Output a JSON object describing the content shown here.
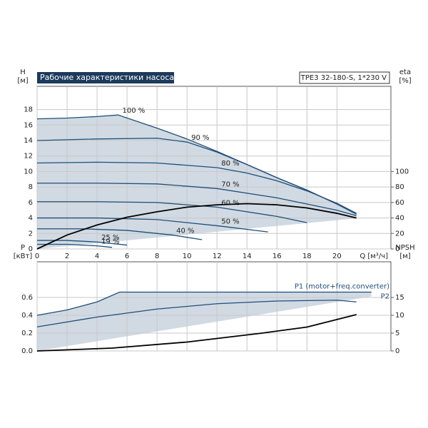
{
  "chart_data": [
    {
      "type": "line",
      "title": "Рабочие характеристики насоса",
      "subtitle": "TPE3 32-180-S, 1*230 V",
      "y_label": "H",
      "y_unit": "[м]",
      "y2_label": "eta",
      "y2_unit": "[%]",
      "x_label": "Q [м³/ч]",
      "xlim": [
        0,
        23.6
      ],
      "xticks": [
        0,
        2,
        4,
        6,
        8,
        10,
        12,
        14,
        16,
        18,
        20
      ],
      "ylim": [
        0,
        21
      ],
      "yticks": [
        0,
        2,
        4,
        6,
        8,
        10,
        12,
        14,
        16,
        18
      ],
      "y2lim": [
        0,
        210
      ],
      "y2ticks": [
        0,
        20,
        40,
        60,
        80,
        100
      ],
      "grid": true,
      "series": [
        {
          "name": "100 %",
          "color": "#1f4e79",
          "x": [
            0,
            2,
            4,
            5.4,
            8,
            10,
            12,
            14,
            16,
            18,
            20,
            21.3
          ],
          "values": [
            16.8,
            16.9,
            17.1,
            17.3,
            15.6,
            14.2,
            12.6,
            10.9,
            9.2,
            7.6,
            5.8,
            4.5
          ]
        },
        {
          "name": "90 %",
          "color": "#1f4e79",
          "x": [
            0,
            4,
            8,
            10,
            12,
            14,
            16,
            18,
            20,
            21.3
          ],
          "values": [
            14.0,
            14.2,
            14.3,
            13.8,
            12.5,
            10.9,
            9.2,
            7.6,
            5.8,
            4.5
          ]
        },
        {
          "name": "80 %",
          "color": "#1f4e79",
          "x": [
            0,
            4,
            8,
            12,
            14,
            16,
            18,
            20,
            21.3
          ],
          "values": [
            11.1,
            11.2,
            11.1,
            10.5,
            9.8,
            8.8,
            7.5,
            5.9,
            4.6
          ]
        },
        {
          "name": "70 %",
          "color": "#1f4e79",
          "x": [
            0,
            4,
            8,
            12,
            16,
            18,
            20,
            21.3
          ],
          "values": [
            8.5,
            8.5,
            8.4,
            7.8,
            6.6,
            5.8,
            5.0,
            4.3
          ]
        },
        {
          "name": "60 %",
          "color": "#1f4e79",
          "x": [
            0,
            4,
            8,
            12,
            16,
            18
          ],
          "values": [
            6.1,
            6.1,
            6.0,
            5.4,
            4.2,
            3.4
          ]
        },
        {
          "name": "50 %",
          "color": "#1f4e79",
          "x": [
            0,
            4,
            8,
            12,
            15.4
          ],
          "values": [
            4.0,
            4.0,
            3.8,
            3.0,
            2.2
          ]
        },
        {
          "name": "40 %",
          "color": "#1f4e79",
          "x": [
            0,
            3,
            6,
            9,
            11
          ],
          "values": [
            2.6,
            2.6,
            2.4,
            1.8,
            1.2
          ]
        },
        {
          "name": "25 %",
          "color": "#1f4e79",
          "x": [
            0,
            2,
            4,
            6
          ],
          "values": [
            1.1,
            1.1,
            0.9,
            0.5
          ]
        },
        {
          "name": "19 %",
          "color": "#1f4e79",
          "x": [
            0,
            2,
            4,
            5
          ],
          "values": [
            0.6,
            0.6,
            0.4,
            0.2
          ]
        },
        {
          "color": "#000000",
          "axis": "y2",
          "x": [
            0,
            2,
            4,
            6,
            8,
            10,
            12,
            14,
            16,
            18,
            20,
            21.3
          ],
          "values": [
            0,
            18,
            31,
            41,
            48,
            54,
            57,
            58.5,
            57,
            53,
            46,
            40
          ]
        }
      ]
    },
    {
      "type": "line",
      "y_label": "P",
      "y_unit": "[кВт]",
      "y2_label": "NPSH",
      "y2_unit": "[м]",
      "xlim": [
        0,
        23.6
      ],
      "xticks": [
        0,
        2,
        4,
        6,
        8,
        10,
        12,
        14,
        16,
        18,
        20
      ],
      "ylim": [
        0,
        1.0
      ],
      "yticks": [
        {
          "value": 0,
          "label": "0.0"
        },
        0.2,
        0.4,
        0.6
      ],
      "y2lim": [
        0,
        25
      ],
      "y2ticks": [
        0,
        5,
        10,
        15
      ],
      "grid": true,
      "series": [
        {
          "name": "P1 (motor+freq.converter)",
          "color": "#1f4e79",
          "x": [
            0,
            2,
            4,
            5.5,
            8,
            12,
            16,
            20,
            22.3
          ],
          "values": [
            0.4,
            0.46,
            0.55,
            0.66,
            0.66,
            0.66,
            0.66,
            0.66,
            0.66
          ]
        },
        {
          "name": "P2",
          "color": "#1f4e79",
          "x": [
            0,
            4,
            8,
            12,
            16,
            20,
            21.3
          ],
          "values": [
            0.27,
            0.38,
            0.47,
            0.53,
            0.56,
            0.57,
            0.55
          ]
        },
        {
          "color": "#000000",
          "axis": "y2",
          "x": [
            0,
            5,
            10,
            15,
            18,
            21.3
          ],
          "values": [
            0,
            0.8,
            2.5,
            5.0,
            6.7,
            10.2
          ]
        }
      ]
    }
  ]
}
